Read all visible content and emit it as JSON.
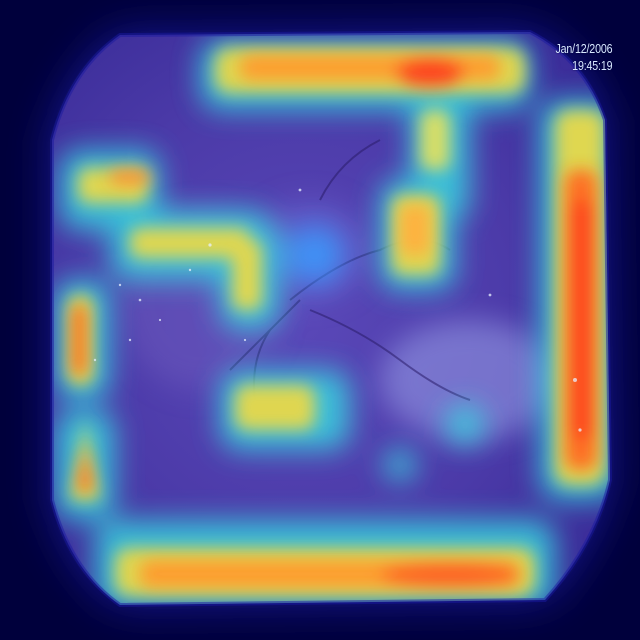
{
  "image": {
    "kind": "endoscopy-frame-with-heatmap-overlay",
    "timestamp_date": "Jan/12/2006",
    "timestamp_time": "19:45:19",
    "colormap": [
      "#00003c",
      "#1f1fb4",
      "#3a7bff",
      "#37d6e0",
      "#e8d84a",
      "#ff9a2e",
      "#ff3a1a"
    ]
  }
}
